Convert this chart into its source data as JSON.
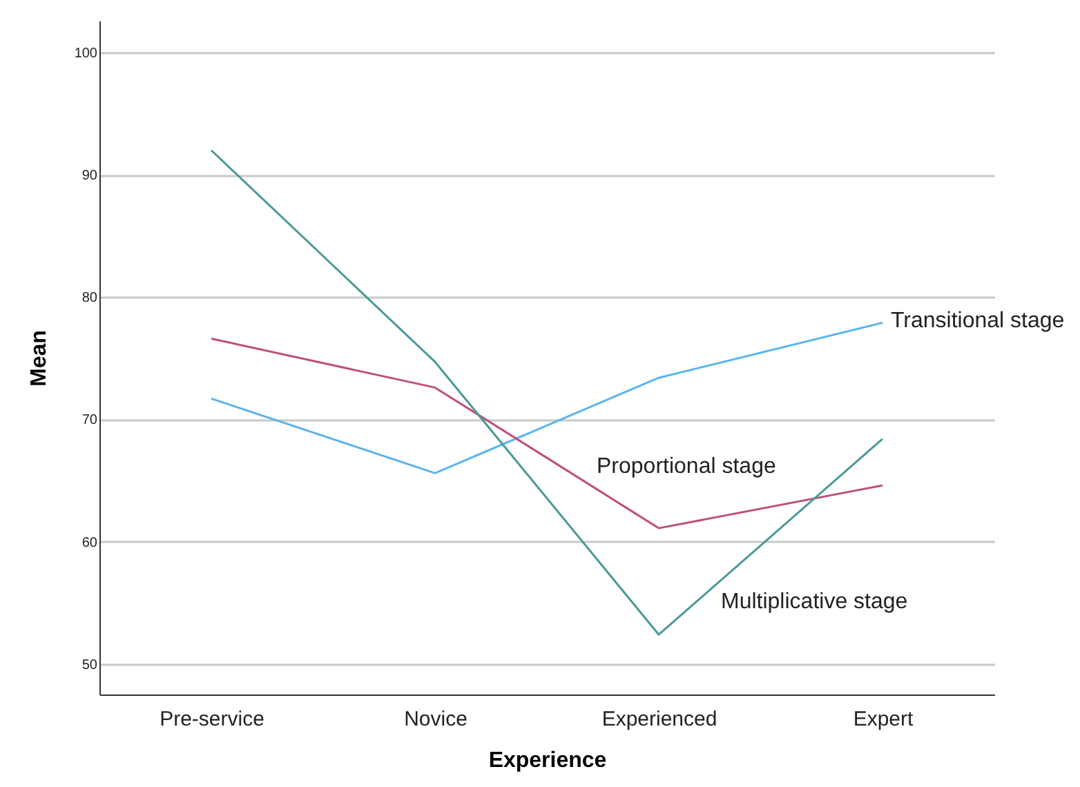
{
  "chart_data": {
    "type": "line",
    "xlabel": "Experience",
    "ylabel": "Mean",
    "categories": [
      "Pre-service",
      "Novice",
      "Experienced",
      "Expert"
    ],
    "series": [
      {
        "name": "Transitional stage",
        "color": "#5ab4ee",
        "values": [
          71.7,
          65.6,
          73.4,
          77.9
        ]
      },
      {
        "name": "Proportional stage",
        "color": "#c0507a",
        "values": [
          76.6,
          72.6,
          61.1,
          64.6
        ]
      },
      {
        "name": "Multiplicative stage",
        "color": "#4a9a96",
        "values": [
          92.0,
          74.7,
          52.4,
          68.4
        ]
      }
    ],
    "ylim": [
      47.5,
      102.6
    ],
    "yticks": [
      50,
      60,
      70,
      80,
      90,
      100
    ],
    "grid": "y",
    "marker": "none",
    "line_style": "solid"
  }
}
